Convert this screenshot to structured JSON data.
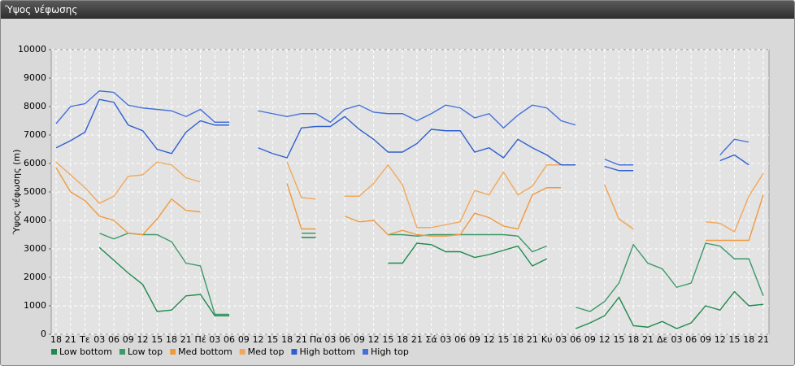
{
  "chart_data": {
    "type": "line",
    "title": "Ύψος νέφωσης",
    "ylabel": "Ύψος νέφωσης (m)",
    "categories": [
      "18",
      "21",
      "Τε",
      "03",
      "06",
      "09",
      "12",
      "15",
      "18",
      "21",
      "Πέ",
      "03",
      "06",
      "09",
      "12",
      "15",
      "18",
      "21",
      "Πα",
      "03",
      "06",
      "09",
      "12",
      "15",
      "18",
      "21",
      "Σά",
      "03",
      "06",
      "09",
      "12",
      "15",
      "18",
      "21",
      "Κυ",
      "03",
      "06",
      "09",
      "12",
      "15",
      "18",
      "21",
      "Δε",
      "03",
      "06",
      "09",
      "12",
      "15",
      "18",
      "21"
    ],
    "ylim": [
      0,
      10000
    ],
    "yticks": [
      0,
      1000,
      2000,
      3000,
      4000,
      5000,
      6000,
      7000,
      8000,
      9000,
      10000
    ],
    "grid": true,
    "legend": "bottom-left",
    "series": [
      {
        "name": "Low bottom",
        "color": "#1f8a4c",
        "values": [
          null,
          null,
          null,
          3050,
          2600,
          2150,
          1750,
          800,
          850,
          1350,
          1400,
          650,
          650,
          null,
          null,
          null,
          null,
          3400,
          3400,
          null,
          null,
          null,
          null,
          2500,
          2500,
          3200,
          3150,
          2900,
          2900,
          2700,
          2800,
          2950,
          3100,
          2400,
          2650,
          null,
          200,
          400,
          650,
          1300,
          300,
          250,
          450,
          200,
          400,
          1000,
          850,
          1500,
          1000,
          1050
        ]
      },
      {
        "name": "Low top",
        "color": "#3a9a68",
        "values": [
          null,
          null,
          null,
          3550,
          3350,
          3550,
          3500,
          3500,
          3250,
          2500,
          2400,
          700,
          700,
          null,
          null,
          null,
          null,
          3550,
          3550,
          null,
          null,
          null,
          null,
          3500,
          3500,
          3450,
          3500,
          3500,
          3500,
          3500,
          3500,
          3500,
          3450,
          2900,
          3100,
          null,
          950,
          800,
          1150,
          1800,
          3150,
          2500,
          2300,
          1650,
          1800,
          3200,
          3100,
          2650,
          2650,
          1350
        ]
      },
      {
        "name": "Med bottom",
        "color": "#f09a3e",
        "values": [
          5850,
          5000,
          4700,
          4150,
          4000,
          3550,
          3500,
          4050,
          4750,
          4350,
          4300,
          null,
          null,
          null,
          null,
          null,
          5300,
          3700,
          3700,
          null,
          4150,
          3950,
          4000,
          3500,
          3650,
          3500,
          3450,
          3450,
          3500,
          4250,
          4100,
          3800,
          3700,
          4900,
          5150,
          5150,
          null,
          null,
          5250,
          4050,
          3700,
          null,
          null,
          null,
          null,
          3300,
          3300,
          3300,
          3300,
          4900
        ]
      },
      {
        "name": "Med top",
        "color": "#f2a85a",
        "values": [
          6050,
          5600,
          5150,
          4600,
          4850,
          5550,
          5600,
          6050,
          5950,
          5500,
          5350,
          null,
          null,
          null,
          null,
          null,
          6050,
          4800,
          4750,
          null,
          4850,
          4850,
          5300,
          5950,
          5250,
          3750,
          3750,
          3850,
          3950,
          5050,
          4900,
          5700,
          4900,
          5200,
          5950,
          5950,
          null,
          null,
          5250,
          4050,
          3700,
          null,
          null,
          null,
          null,
          3950,
          3900,
          3600,
          4850,
          5650
        ]
      },
      {
        "name": "High bottom",
        "color": "#2f5fcf",
        "values": [
          6550,
          6800,
          7100,
          8250,
          8150,
          7350,
          7150,
          6500,
          6350,
          7100,
          7500,
          7350,
          7350,
          null,
          6550,
          6350,
          6200,
          7250,
          7300,
          7300,
          7650,
          7200,
          6850,
          6400,
          6400,
          6700,
          7200,
          7150,
          7150,
          6400,
          6550,
          6200,
          6850,
          6550,
          6300,
          5950,
          5950,
          null,
          5900,
          5750,
          5750,
          null,
          null,
          null,
          null,
          null,
          6100,
          6300,
          5950,
          null
        ]
      },
      {
        "name": "High top",
        "color": "#4470dc",
        "values": [
          7400,
          8000,
          8100,
          8550,
          8500,
          8050,
          7950,
          7900,
          7850,
          7650,
          7900,
          7450,
          7450,
          null,
          7850,
          7750,
          7650,
          7750,
          7750,
          7450,
          7900,
          8050,
          7800,
          7750,
          7750,
          7500,
          7750,
          8050,
          7950,
          7600,
          7750,
          7250,
          7700,
          8050,
          7950,
          7500,
          7350,
          null,
          6150,
          5950,
          5950,
          null,
          null,
          null,
          null,
          null,
          6300,
          6850,
          6750,
          null
        ]
      }
    ]
  }
}
